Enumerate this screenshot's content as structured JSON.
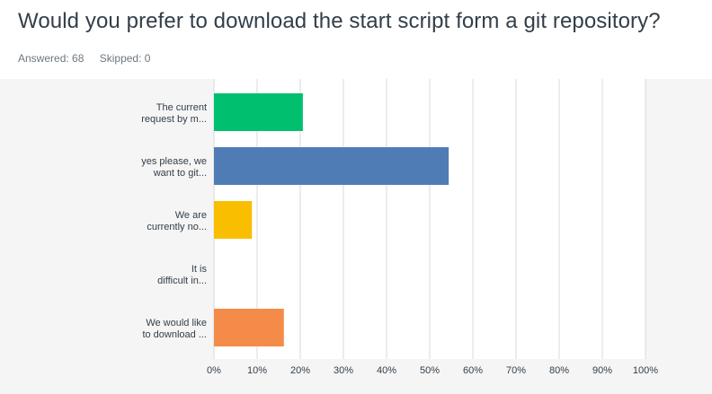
{
  "question": {
    "title": "Would you prefer to download the start script form a git repository?",
    "answered_label": "Answered: 68",
    "skipped_label": "Skipped: 0"
  },
  "colors": {
    "grid": "#d9d9d9",
    "axis_text": "#333e48",
    "plot_bg": "#ffffff",
    "panel_bg": "#f5f5f5"
  },
  "chart_data": {
    "type": "bar",
    "orientation": "horizontal",
    "categories": [
      [
        "The current",
        "request by m..."
      ],
      [
        "yes please, we",
        "want to git..."
      ],
      [
        "We are",
        "currently no..."
      ],
      [
        "It is",
        "difficult in..."
      ],
      [
        "We would like",
        "to download ..."
      ]
    ],
    "values": [
      20.6,
      54.4,
      8.8,
      0,
      16.2
    ],
    "bar_colors": [
      "#00bf6f",
      "#507cb6",
      "#f9be00",
      "#6bc8cd",
      "#f58b48"
    ],
    "xlim": [
      0,
      100
    ],
    "x_ticks": [
      "0%",
      "10%",
      "20%",
      "30%",
      "40%",
      "50%",
      "60%",
      "70%",
      "80%",
      "90%",
      "100%"
    ],
    "grid": true
  }
}
